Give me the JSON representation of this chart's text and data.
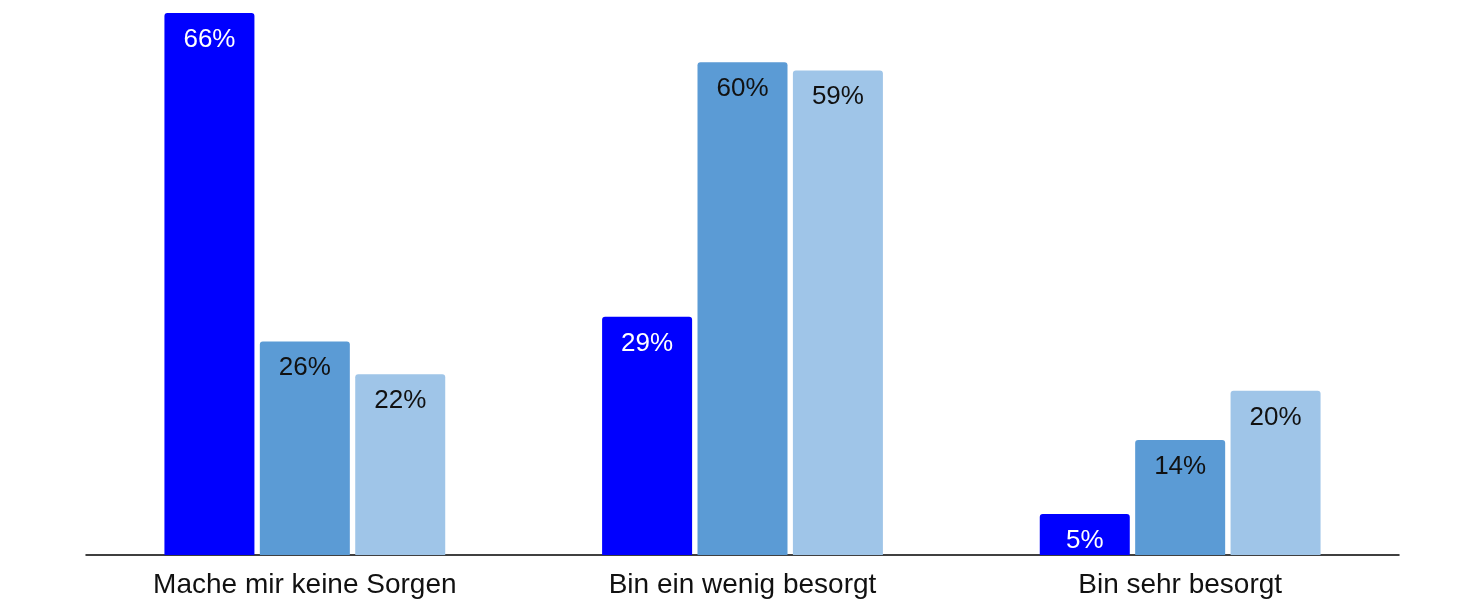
{
  "chart_data": {
    "type": "bar",
    "categories": [
      "Mache mir keine Sorgen",
      "Bin ein wenig besorgt",
      "Bin sehr besorgt"
    ],
    "series": [
      {
        "color": "#0000ff",
        "values": [
          66,
          29,
          5
        ],
        "value_labels": [
          "66%",
          "29%",
          "5%"
        ]
      },
      {
        "color": "#5b9bd5",
        "values": [
          26,
          60,
          14
        ],
        "value_labels": [
          "26%",
          "60%",
          "14%"
        ]
      },
      {
        "color": "#9fc5e8",
        "values": [
          22,
          59,
          20
        ],
        "value_labels": [
          "22%",
          "59%",
          "20%"
        ]
      }
    ]
  }
}
